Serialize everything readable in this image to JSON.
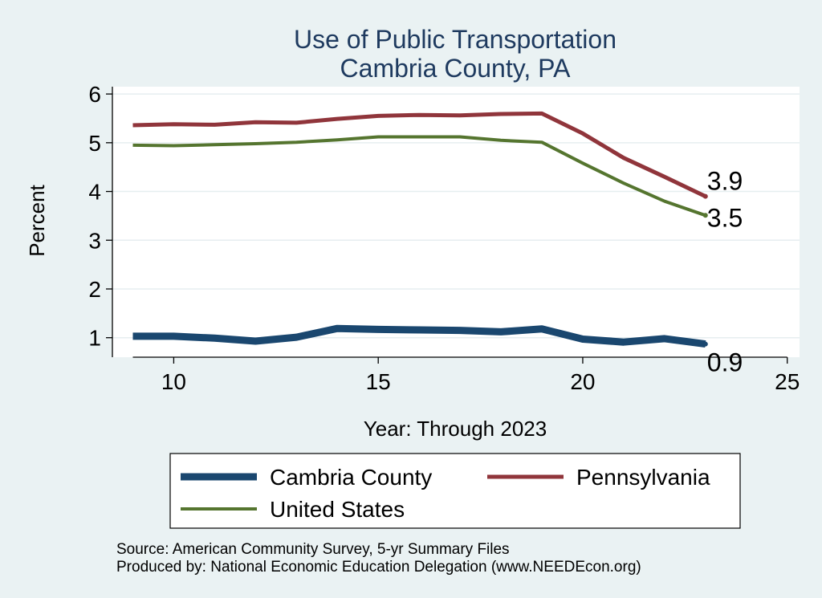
{
  "chart_data": {
    "type": "line",
    "title": [
      "Use of Public Transportation",
      "Cambria County, PA"
    ],
    "xlabel": "Year: Through 2023",
    "ylabel": "Percent",
    "xlim": [
      8.5,
      25.3
    ],
    "ylim": [
      0.6,
      6.15
    ],
    "x_ticks": [
      10,
      15,
      20,
      25
    ],
    "y_ticks": [
      1,
      2,
      3,
      4,
      5,
      6
    ],
    "grid": true,
    "legend_position": "bottom",
    "x": [
      9,
      10,
      11,
      12,
      13,
      14,
      15,
      16,
      17,
      18,
      19,
      20,
      21,
      22,
      23
    ],
    "series": [
      {
        "name": "Cambria County",
        "color": "#1a476f",
        "values": [
          1.03,
          1.03,
          0.99,
          0.93,
          1.01,
          1.19,
          1.17,
          1.16,
          1.15,
          1.12,
          1.18,
          0.97,
          0.91,
          0.98,
          0.87
        ],
        "end_label": "0.9"
      },
      {
        "name": "Pennsylvania",
        "color": "#90353b",
        "values": [
          5.36,
          5.38,
          5.37,
          5.42,
          5.41,
          5.49,
          5.55,
          5.57,
          5.56,
          5.59,
          5.6,
          5.19,
          4.69,
          4.3,
          3.9
        ],
        "end_label": "3.9"
      },
      {
        "name": "United States",
        "color": "#55752f",
        "values": [
          4.95,
          4.94,
          4.96,
          4.98,
          5.01,
          5.06,
          5.12,
          5.12,
          5.12,
          5.05,
          5.01,
          4.58,
          4.17,
          3.8,
          3.51
        ],
        "end_label": "3.5"
      }
    ],
    "notes": [
      "Source: American Community Survey, 5-yr Summary Files",
      "Produced by: National Economic Education Delegation (www.NEEDEcon.org)"
    ]
  }
}
